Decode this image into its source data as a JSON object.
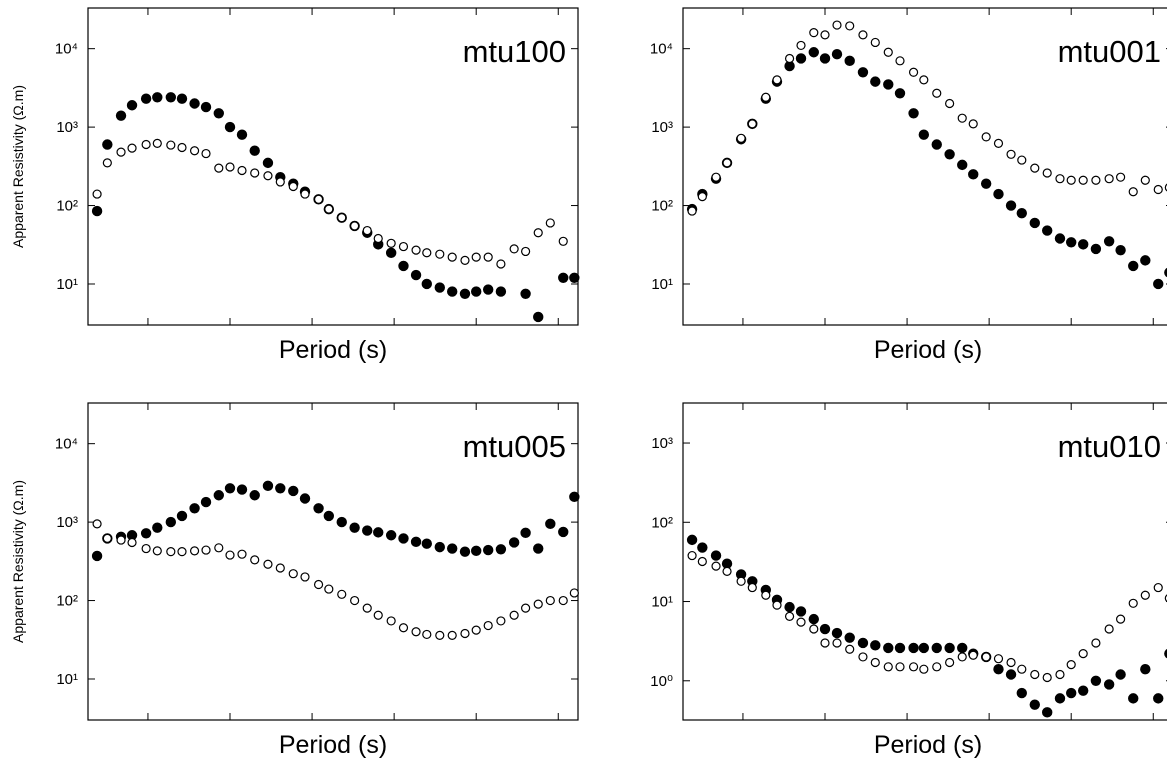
{
  "chart_data": [
    {
      "type": "scatter",
      "title": "mtu100",
      "x_label": "Period (s)",
      "y_label": "Apparent Resistivity (Ω.m)",
      "log_x": true,
      "log_y": true,
      "x": [
        0.00024,
        0.00032,
        0.00047,
        0.00064,
        0.00095,
        0.0013,
        0.0019,
        0.0026,
        0.0037,
        0.0051,
        0.0073,
        0.01,
        0.014,
        0.02,
        0.029,
        0.041,
        0.059,
        0.082,
        0.12,
        0.16,
        0.23,
        0.33,
        0.47,
        0.64,
        0.92,
        1.3,
        1.85,
        2.5,
        3.6,
        5.1,
        7.3,
        10,
        14,
        20,
        29,
        40,
        57,
        80,
        115,
        157
      ],
      "xlim": [
        0.000186,
        174
      ],
      "xticks": [
        0.001,
        0.01,
        0.1,
        1,
        10,
        100
      ],
      "ylim": [
        3,
        33000
      ],
      "yticks": [
        {
          "value": 10,
          "label": "10¹"
        },
        {
          "value": 100,
          "label": "10²"
        },
        {
          "value": 1000,
          "label": "10³"
        },
        {
          "value": 10000,
          "label": "10⁴"
        }
      ],
      "series": [
        {
          "color": "#000000",
          "filled": true,
          "values": [
            85,
            600,
            1400,
            1900,
            2300,
            2400,
            2400,
            2300,
            2000,
            1800,
            1500,
            1000,
            800,
            500,
            350,
            230,
            190,
            150,
            120,
            90,
            70,
            55,
            45,
            32,
            25,
            17,
            13,
            10,
            9,
            8,
            7.5,
            8,
            8.5,
            8,
            null,
            7.5,
            3.8,
            null,
            12,
            12
          ]
        },
        {
          "color": "#000000",
          "filled": false,
          "values": [
            140,
            350,
            480,
            540,
            600,
            620,
            590,
            550,
            500,
            460,
            300,
            310,
            280,
            260,
            240,
            200,
            175,
            140,
            120,
            90,
            70,
            55,
            48,
            38,
            33,
            30,
            27,
            25,
            24,
            22,
            20,
            22,
            22,
            18,
            28,
            26,
            45,
            60,
            35,
            null
          ]
        }
      ]
    },
    {
      "type": "scatter",
      "title": "mtu001",
      "x_label": "Period (s)",
      "log_x": true,
      "log_y": true,
      "x": [
        0.00024,
        0.00032,
        0.00047,
        0.00064,
        0.00095,
        0.0013,
        0.0019,
        0.0026,
        0.0037,
        0.0051,
        0.0073,
        0.01,
        0.014,
        0.02,
        0.029,
        0.041,
        0.059,
        0.082,
        0.12,
        0.16,
        0.23,
        0.33,
        0.47,
        0.64,
        0.92,
        1.3,
        1.85,
        2.5,
        3.6,
        5.1,
        7.3,
        10,
        14,
        20,
        29,
        40,
        57,
        80,
        115,
        157
      ],
      "xlim": [
        0.000186,
        174
      ],
      "xticks": [
        0.001,
        0.01,
        0.1,
        1,
        10,
        100
      ],
      "ylim": [
        3,
        33000
      ],
      "yticks": [
        {
          "value": 10,
          "label": "10¹"
        },
        {
          "value": 100,
          "label": "10²"
        },
        {
          "value": 1000,
          "label": "10³"
        },
        {
          "value": 10000,
          "label": "10⁴"
        }
      ],
      "series": [
        {
          "color": "#000000",
          "filled": true,
          "values": [
            90,
            140,
            220,
            350,
            700,
            1100,
            2300,
            3800,
            6000,
            7500,
            9000,
            7500,
            8500,
            7000,
            5000,
            3800,
            3500,
            2700,
            1500,
            800,
            600,
            450,
            330,
            250,
            190,
            140,
            100,
            80,
            60,
            48,
            38,
            34,
            32,
            28,
            35,
            27,
            17,
            20,
            10,
            14
          ]
        },
        {
          "color": "#000000",
          "filled": false,
          "values": [
            85,
            130,
            230,
            350,
            720,
            1100,
            2400,
            4000,
            7500,
            11000,
            16000,
            15000,
            20000,
            19500,
            15000,
            12000,
            9000,
            7000,
            5000,
            4000,
            2700,
            2000,
            1300,
            1100,
            750,
            620,
            450,
            380,
            300,
            260,
            220,
            210,
            210,
            210,
            220,
            230,
            150,
            210,
            160,
            170
          ]
        }
      ]
    },
    {
      "type": "scatter",
      "title": "mtu005",
      "x_label": "Period (s)",
      "y_label": "Apparent Resistivity (Ω.m)",
      "log_x": true,
      "log_y": true,
      "x": [
        0.00024,
        0.00032,
        0.00047,
        0.00064,
        0.00095,
        0.0013,
        0.0019,
        0.0026,
        0.0037,
        0.0051,
        0.0073,
        0.01,
        0.014,
        0.02,
        0.029,
        0.041,
        0.059,
        0.082,
        0.12,
        0.16,
        0.23,
        0.33,
        0.47,
        0.64,
        0.92,
        1.3,
        1.85,
        2.5,
        3.6,
        5.1,
        7.3,
        10,
        14,
        20,
        29,
        40,
        57,
        80,
        115,
        157
      ],
      "xlim": [
        0.000186,
        174
      ],
      "xticks": [
        0.001,
        0.01,
        0.1,
        1,
        10,
        100
      ],
      "ylim": [
        3,
        33000
      ],
      "yticks": [
        {
          "value": 10,
          "label": "10¹"
        },
        {
          "value": 100,
          "label": "10²"
        },
        {
          "value": 1000,
          "label": "10³"
        },
        {
          "value": 10000,
          "label": "10⁴"
        }
      ],
      "series": [
        {
          "color": "#000000",
          "filled": true,
          "values": [
            370,
            620,
            650,
            680,
            720,
            850,
            1000,
            1200,
            1500,
            1800,
            2200,
            2700,
            2600,
            2200,
            2900,
            2700,
            2500,
            2000,
            1500,
            1200,
            1000,
            850,
            780,
            740,
            680,
            620,
            560,
            530,
            480,
            460,
            420,
            430,
            440,
            450,
            550,
            730,
            460,
            950,
            750,
            2100
          ]
        },
        {
          "color": "#000000",
          "filled": false,
          "values": [
            950,
            620,
            590,
            550,
            460,
            430,
            420,
            420,
            430,
            440,
            470,
            380,
            390,
            330,
            290,
            260,
            220,
            200,
            160,
            140,
            120,
            100,
            80,
            65,
            55,
            45,
            40,
            37,
            36,
            36,
            38,
            42,
            48,
            55,
            65,
            80,
            90,
            100,
            100,
            125
          ]
        }
      ]
    },
    {
      "type": "scatter",
      "title": "mtu010",
      "x_label": "Period (s)",
      "log_x": true,
      "log_y": true,
      "x": [
        0.00024,
        0.00032,
        0.00047,
        0.00064,
        0.00095,
        0.0013,
        0.0019,
        0.0026,
        0.0037,
        0.0051,
        0.0073,
        0.01,
        0.014,
        0.02,
        0.029,
        0.041,
        0.059,
        0.082,
        0.12,
        0.16,
        0.23,
        0.33,
        0.47,
        0.64,
        0.92,
        1.3,
        1.85,
        2.5,
        3.6,
        5.1,
        7.3,
        10,
        14,
        20,
        29,
        40,
        57,
        80,
        115,
        157
      ],
      "xlim": [
        0.000186,
        174
      ],
      "xticks": [
        0.001,
        0.01,
        0.1,
        1,
        10,
        100
      ],
      "ylim": [
        0.32,
        3200
      ],
      "yticks": [
        {
          "value": 1,
          "label": "10⁰"
        },
        {
          "value": 10,
          "label": "10¹"
        },
        {
          "value": 100,
          "label": "10²"
        },
        {
          "value": 1000,
          "label": "10³"
        }
      ],
      "series": [
        {
          "color": "#000000",
          "filled": true,
          "values": [
            60,
            48,
            38,
            30,
            22,
            18,
            14,
            10.5,
            8.5,
            7.5,
            6,
            4.5,
            4,
            3.5,
            3,
            2.8,
            2.6,
            2.6,
            2.6,
            2.6,
            2.6,
            2.6,
            2.6,
            2.2,
            2.0,
            1.4,
            1.2,
            0.7,
            0.5,
            0.4,
            0.6,
            0.7,
            0.75,
            1.0,
            0.9,
            1.2,
            0.6,
            1.4,
            0.6,
            2.2
          ]
        },
        {
          "color": "#000000",
          "filled": false,
          "values": [
            38,
            32,
            28,
            24,
            18,
            15,
            12,
            9,
            6.5,
            5.5,
            4.5,
            3,
            3,
            2.5,
            2,
            1.7,
            1.5,
            1.5,
            1.5,
            1.4,
            1.5,
            1.7,
            2,
            2.1,
            2,
            1.9,
            1.7,
            1.4,
            1.2,
            1.1,
            1.2,
            1.6,
            2.2,
            3,
            4.5,
            6,
            9.5,
            12,
            15,
            11
          ]
        }
      ]
    }
  ]
}
